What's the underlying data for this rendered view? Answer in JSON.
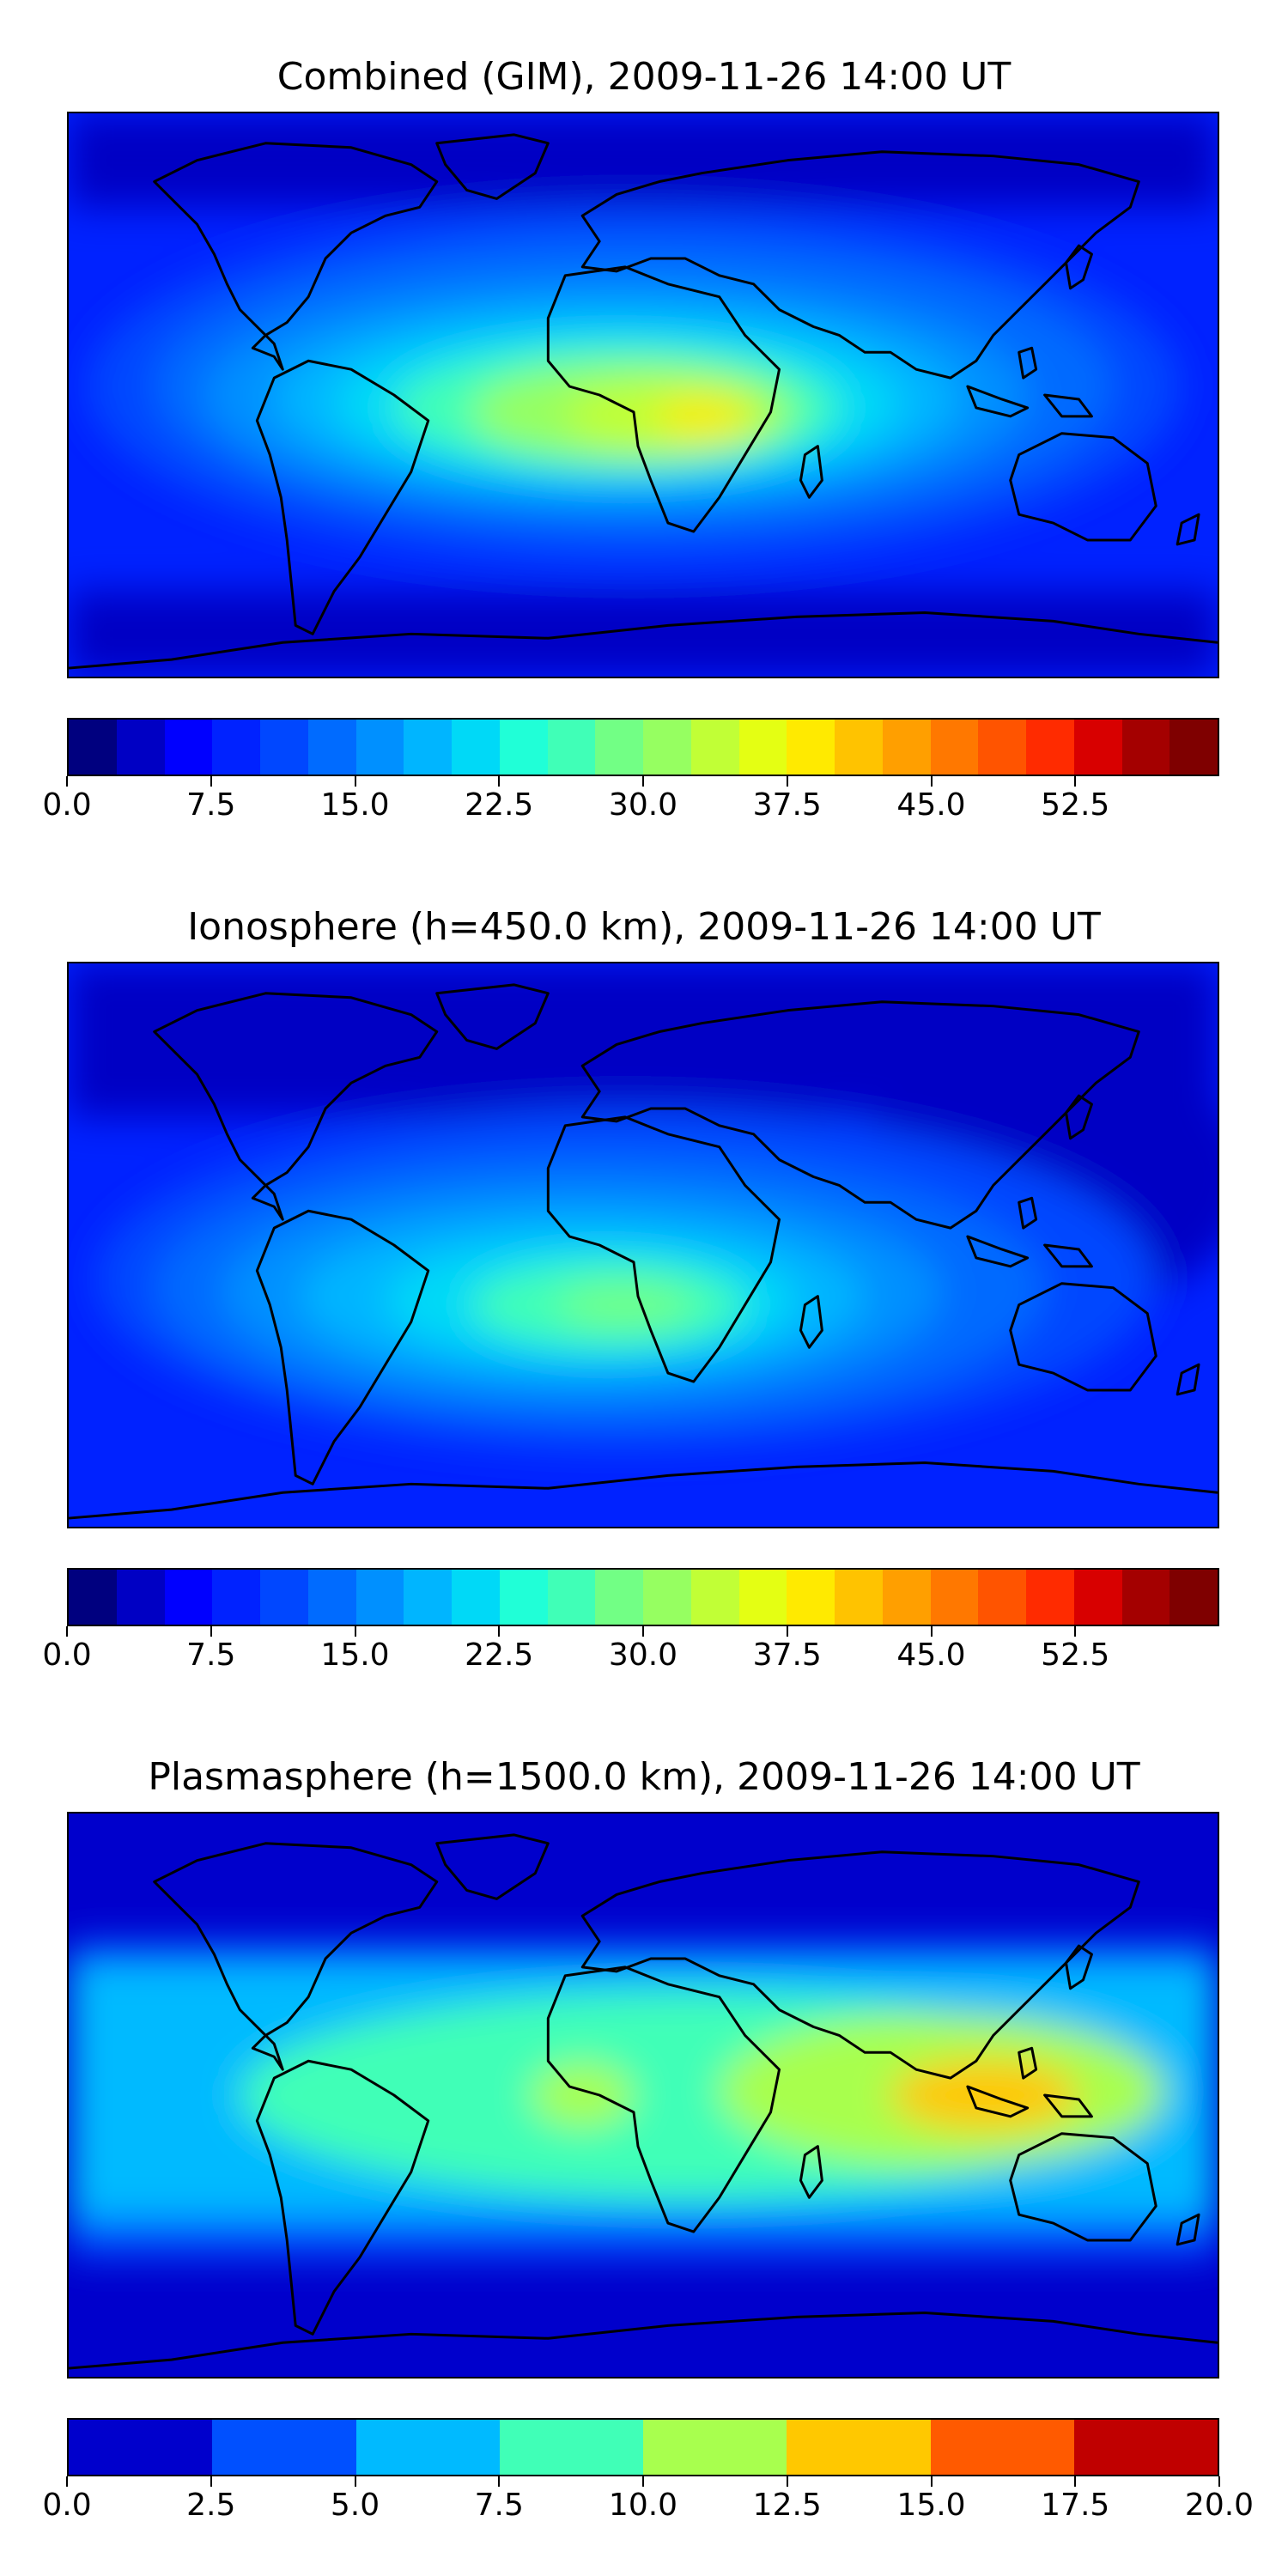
{
  "panels": [
    {
      "title": "Combined (GIM), 2009-11-26 14:00 UT",
      "colorbar": {
        "colors": [
          "#00007f",
          "#0000c4",
          "#0000ff",
          "#0022ff",
          "#0047ff",
          "#006bff",
          "#0090ff",
          "#00b5ff",
          "#00d9f7",
          "#20ffd7",
          "#40ffb7",
          "#72ff85",
          "#96ff61",
          "#c1ff36",
          "#e4ff13",
          "#ffea00",
          "#ffc300",
          "#ff9f00",
          "#ff7800",
          "#ff5400",
          "#ff2b00",
          "#d80000",
          "#a40000",
          "#7f0000"
        ],
        "ticks": [
          "0.0",
          "7.5",
          "15.0",
          "22.5",
          "30.0",
          "37.5",
          "45.0",
          "52.5"
        ]
      }
    },
    {
      "title": "Ionosphere  (h=450.0 km), 2009-11-26 14:00 UT",
      "colorbar": {
        "colors": [
          "#00007f",
          "#0000c4",
          "#0000ff",
          "#0022ff",
          "#0047ff",
          "#006bff",
          "#0090ff",
          "#00b5ff",
          "#00d9f7",
          "#20ffd7",
          "#40ffb7",
          "#72ff85",
          "#96ff61",
          "#c1ff36",
          "#e4ff13",
          "#ffea00",
          "#ffc300",
          "#ff9f00",
          "#ff7800",
          "#ff5400",
          "#ff2b00",
          "#d80000",
          "#a40000",
          "#7f0000"
        ],
        "ticks": [
          "0.0",
          "7.5",
          "15.0",
          "22.5",
          "30.0",
          "37.5",
          "45.0",
          "52.5"
        ]
      }
    },
    {
      "title": "Plasmasphere (h=1500.0 km), 2009-11-26 14:00 UT",
      "colorbar": {
        "colors": [
          "#0000cc",
          "#0050ff",
          "#00baff",
          "#40ffb7",
          "#a8ff4e",
          "#ffc800",
          "#ff5a00",
          "#c00000"
        ],
        "ticks": [
          "0.0",
          "2.5",
          "5.0",
          "7.5",
          "10.0",
          "12.5",
          "15.0",
          "17.5",
          "20.0"
        ]
      }
    }
  ]
}
